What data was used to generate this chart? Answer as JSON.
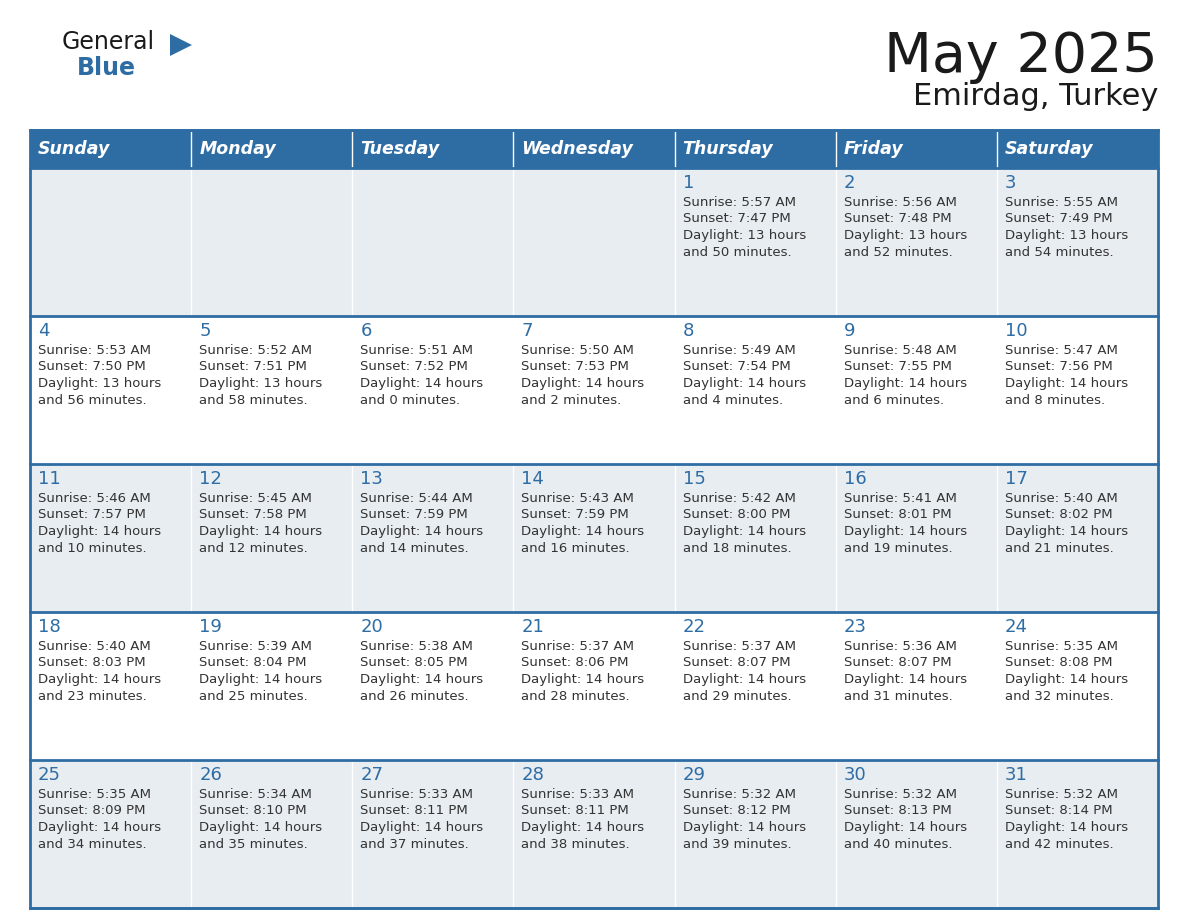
{
  "title": "May 2025",
  "subtitle": "Emirdag, Turkey",
  "header_bg": "#2E6DA4",
  "header_text_color": "#FFFFFF",
  "cell_bg_odd": "#E8EDF2",
  "cell_bg_even": "#FFFFFF",
  "day_number_color": "#2E6DA4",
  "cell_text_color": "#333333",
  "line_color": "#2E6DA4",
  "days_of_week": [
    "Sunday",
    "Monday",
    "Tuesday",
    "Wednesday",
    "Thursday",
    "Friday",
    "Saturday"
  ],
  "calendar_data": [
    [
      null,
      null,
      null,
      null,
      {
        "day": 1,
        "sunrise": "5:57 AM",
        "sunset": "7:47 PM",
        "daylight_hours": 13,
        "daylight_minutes": 50
      },
      {
        "day": 2,
        "sunrise": "5:56 AM",
        "sunset": "7:48 PM",
        "daylight_hours": 13,
        "daylight_minutes": 52
      },
      {
        "day": 3,
        "sunrise": "5:55 AM",
        "sunset": "7:49 PM",
        "daylight_hours": 13,
        "daylight_minutes": 54
      }
    ],
    [
      {
        "day": 4,
        "sunrise": "5:53 AM",
        "sunset": "7:50 PM",
        "daylight_hours": 13,
        "daylight_minutes": 56
      },
      {
        "day": 5,
        "sunrise": "5:52 AM",
        "sunset": "7:51 PM",
        "daylight_hours": 13,
        "daylight_minutes": 58
      },
      {
        "day": 6,
        "sunrise": "5:51 AM",
        "sunset": "7:52 PM",
        "daylight_hours": 14,
        "daylight_minutes": 0
      },
      {
        "day": 7,
        "sunrise": "5:50 AM",
        "sunset": "7:53 PM",
        "daylight_hours": 14,
        "daylight_minutes": 2
      },
      {
        "day": 8,
        "sunrise": "5:49 AM",
        "sunset": "7:54 PM",
        "daylight_hours": 14,
        "daylight_minutes": 4
      },
      {
        "day": 9,
        "sunrise": "5:48 AM",
        "sunset": "7:55 PM",
        "daylight_hours": 14,
        "daylight_minutes": 6
      },
      {
        "day": 10,
        "sunrise": "5:47 AM",
        "sunset": "7:56 PM",
        "daylight_hours": 14,
        "daylight_minutes": 8
      }
    ],
    [
      {
        "day": 11,
        "sunrise": "5:46 AM",
        "sunset": "7:57 PM",
        "daylight_hours": 14,
        "daylight_minutes": 10
      },
      {
        "day": 12,
        "sunrise": "5:45 AM",
        "sunset": "7:58 PM",
        "daylight_hours": 14,
        "daylight_minutes": 12
      },
      {
        "day": 13,
        "sunrise": "5:44 AM",
        "sunset": "7:59 PM",
        "daylight_hours": 14,
        "daylight_minutes": 14
      },
      {
        "day": 14,
        "sunrise": "5:43 AM",
        "sunset": "7:59 PM",
        "daylight_hours": 14,
        "daylight_minutes": 16
      },
      {
        "day": 15,
        "sunrise": "5:42 AM",
        "sunset": "8:00 PM",
        "daylight_hours": 14,
        "daylight_minutes": 18
      },
      {
        "day": 16,
        "sunrise": "5:41 AM",
        "sunset": "8:01 PM",
        "daylight_hours": 14,
        "daylight_minutes": 19
      },
      {
        "day": 17,
        "sunrise": "5:40 AM",
        "sunset": "8:02 PM",
        "daylight_hours": 14,
        "daylight_minutes": 21
      }
    ],
    [
      {
        "day": 18,
        "sunrise": "5:40 AM",
        "sunset": "8:03 PM",
        "daylight_hours": 14,
        "daylight_minutes": 23
      },
      {
        "day": 19,
        "sunrise": "5:39 AM",
        "sunset": "8:04 PM",
        "daylight_hours": 14,
        "daylight_minutes": 25
      },
      {
        "day": 20,
        "sunrise": "5:38 AM",
        "sunset": "8:05 PM",
        "daylight_hours": 14,
        "daylight_minutes": 26
      },
      {
        "day": 21,
        "sunrise": "5:37 AM",
        "sunset": "8:06 PM",
        "daylight_hours": 14,
        "daylight_minutes": 28
      },
      {
        "day": 22,
        "sunrise": "5:37 AM",
        "sunset": "8:07 PM",
        "daylight_hours": 14,
        "daylight_minutes": 29
      },
      {
        "day": 23,
        "sunrise": "5:36 AM",
        "sunset": "8:07 PM",
        "daylight_hours": 14,
        "daylight_minutes": 31
      },
      {
        "day": 24,
        "sunrise": "5:35 AM",
        "sunset": "8:08 PM",
        "daylight_hours": 14,
        "daylight_minutes": 32
      }
    ],
    [
      {
        "day": 25,
        "sunrise": "5:35 AM",
        "sunset": "8:09 PM",
        "daylight_hours": 14,
        "daylight_minutes": 34
      },
      {
        "day": 26,
        "sunrise": "5:34 AM",
        "sunset": "8:10 PM",
        "daylight_hours": 14,
        "daylight_minutes": 35
      },
      {
        "day": 27,
        "sunrise": "5:33 AM",
        "sunset": "8:11 PM",
        "daylight_hours": 14,
        "daylight_minutes": 37
      },
      {
        "day": 28,
        "sunrise": "5:33 AM",
        "sunset": "8:11 PM",
        "daylight_hours": 14,
        "daylight_minutes": 38
      },
      {
        "day": 29,
        "sunrise": "5:32 AM",
        "sunset": "8:12 PM",
        "daylight_hours": 14,
        "daylight_minutes": 39
      },
      {
        "day": 30,
        "sunrise": "5:32 AM",
        "sunset": "8:13 PM",
        "daylight_hours": 14,
        "daylight_minutes": 40
      },
      {
        "day": 31,
        "sunrise": "5:32 AM",
        "sunset": "8:14 PM",
        "daylight_hours": 14,
        "daylight_minutes": 42
      }
    ]
  ]
}
